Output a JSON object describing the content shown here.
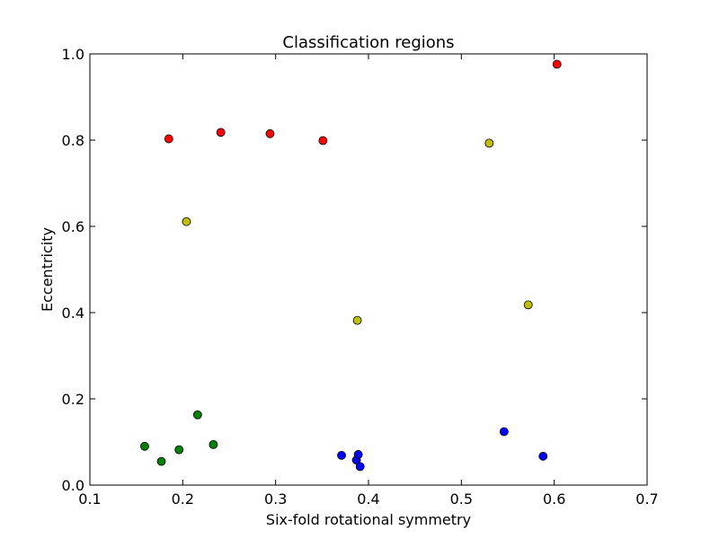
{
  "chart_data": {
    "type": "scatter",
    "title": "Classification regions",
    "xlabel": "Six-fold rotational symmetry",
    "ylabel": "Eccentricity",
    "xlim": [
      0.1,
      0.7
    ],
    "ylim": [
      0.0,
      1.0
    ],
    "xticks": [
      0.1,
      0.2,
      0.3,
      0.4,
      0.5,
      0.6,
      0.7
    ],
    "xtick_labels": [
      "0.1",
      "0.2",
      "0.3",
      "0.4",
      "0.5",
      "0.6",
      "0.7"
    ],
    "yticks": [
      0.0,
      0.2,
      0.4,
      0.6,
      0.8,
      1.0
    ],
    "ytick_labels": [
      "0.0",
      "0.2",
      "0.4",
      "0.6",
      "0.8",
      "1.0"
    ],
    "grid": false,
    "legend": "none",
    "series": [
      {
        "color": "#ff0000",
        "points": [
          {
            "x": 0.185,
            "y": 0.803
          },
          {
            "x": 0.241,
            "y": 0.818
          },
          {
            "x": 0.294,
            "y": 0.815
          },
          {
            "x": 0.351,
            "y": 0.799
          },
          {
            "x": 0.603,
            "y": 0.976
          }
        ]
      },
      {
        "color": "#bfbf00",
        "points": [
          {
            "x": 0.204,
            "y": 0.611
          },
          {
            "x": 0.388,
            "y": 0.382
          },
          {
            "x": 0.53,
            "y": 0.793
          },
          {
            "x": 0.572,
            "y": 0.418
          }
        ]
      },
      {
        "color": "#008000",
        "points": [
          {
            "x": 0.159,
            "y": 0.09
          },
          {
            "x": 0.177,
            "y": 0.055
          },
          {
            "x": 0.196,
            "y": 0.082
          },
          {
            "x": 0.216,
            "y": 0.163
          },
          {
            "x": 0.233,
            "y": 0.094
          }
        ]
      },
      {
        "color": "#0000ff",
        "points": [
          {
            "x": 0.371,
            "y": 0.069
          },
          {
            "x": 0.387,
            "y": 0.058
          },
          {
            "x": 0.389,
            "y": 0.071
          },
          {
            "x": 0.391,
            "y": 0.043
          },
          {
            "x": 0.546,
            "y": 0.124
          },
          {
            "x": 0.588,
            "y": 0.067
          }
        ]
      }
    ]
  }
}
